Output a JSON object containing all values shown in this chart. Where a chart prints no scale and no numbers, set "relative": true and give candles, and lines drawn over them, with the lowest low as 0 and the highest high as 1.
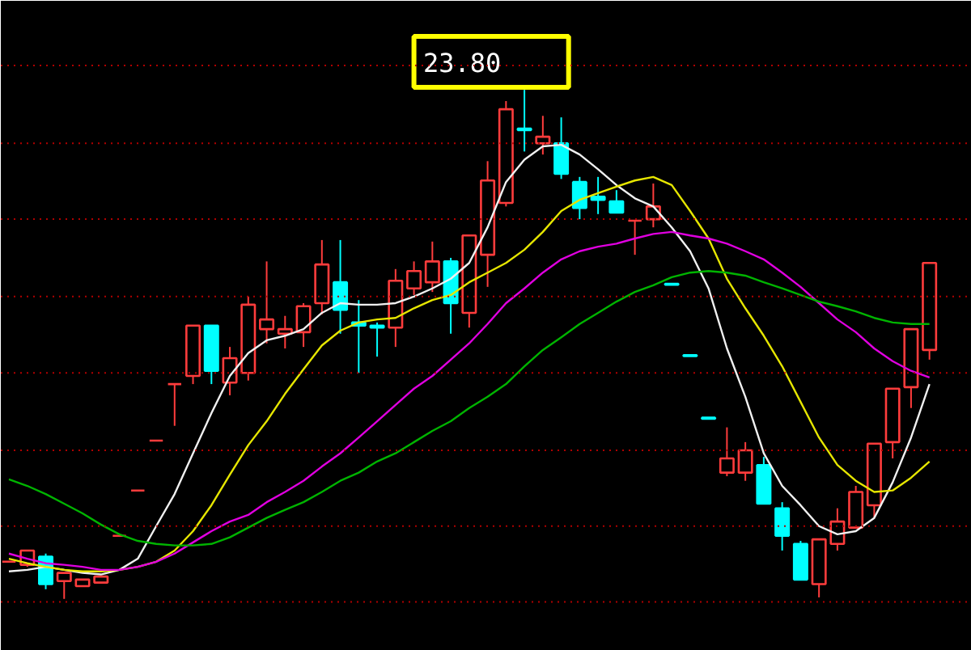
{
  "chart_data": {
    "type": "candlestick",
    "relative": true,
    "tick_labels": false,
    "ref_lines": [
      {
        "axis": "y",
        "value": 1.048,
        "color": "#b00000",
        "line_style": "dotted"
      },
      {
        "axis": "y",
        "value": 0.895,
        "color": "#b00000",
        "line_style": "dotted"
      },
      {
        "axis": "y",
        "value": 0.746,
        "color": "#b00000",
        "line_style": "dotted"
      },
      {
        "axis": "y",
        "value": 0.594,
        "color": "#b00000",
        "line_style": "dotted"
      },
      {
        "axis": "y",
        "value": 0.444,
        "color": "#b00000",
        "line_style": "dotted"
      },
      {
        "axis": "y",
        "value": 0.292,
        "color": "#b00000",
        "line_style": "dotted"
      },
      {
        "axis": "y",
        "value": 0.143,
        "color": "#b00000",
        "line_style": "dotted"
      },
      {
        "axis": "y",
        "value": -0.006,
        "color": "#b00000",
        "line_style": "dotted"
      }
    ],
    "categories": [
      null,
      null,
      null,
      null,
      null,
      null,
      null,
      null,
      null,
      null,
      null,
      null,
      null,
      null,
      null,
      null,
      null,
      null,
      null,
      null,
      null,
      null,
      null,
      null,
      null,
      null,
      null,
      null,
      null,
      null,
      null,
      null,
      null,
      null,
      null,
      null,
      null,
      null,
      null,
      null,
      null,
      null,
      null,
      null,
      null,
      null,
      null,
      null,
      null,
      null,
      null
    ],
    "ohlc": [
      [
        0.073,
        0.073,
        0.073,
        0.073
      ],
      [
        0.067,
        0.095,
        0.063,
        0.095
      ],
      [
        0.083,
        0.089,
        0.019,
        0.029
      ],
      [
        0.035,
        0.051,
        0,
        0.051
      ],
      [
        0.025,
        0.038,
        0.025,
        0.038
      ],
      [
        0.032,
        0.044,
        0.032,
        0.044
      ],
      [
        0.124,
        0.124,
        0.124,
        0.124
      ],
      [
        0.213,
        0.213,
        0.213,
        0.213
      ],
      [
        0.311,
        0.311,
        0.311,
        0.311
      ],
      [
        0.422,
        0.422,
        0.34,
        0.422
      ],
      [
        0.438,
        0.537,
        0.422,
        0.537
      ],
      [
        0.537,
        0.537,
        0.422,
        0.448
      ],
      [
        0.425,
        0.495,
        0.4,
        0.473
      ],
      [
        0.444,
        0.594,
        0.429,
        0.578
      ],
      [
        0.53,
        0.663,
        0.502,
        0.549
      ],
      [
        0.521,
        0.556,
        0.492,
        0.53
      ],
      [
        0.524,
        0.581,
        0.495,
        0.575
      ],
      [
        0.581,
        0.705,
        0.559,
        0.657
      ],
      [
        0.622,
        0.705,
        0.521,
        0.568
      ],
      [
        0.543,
        0.587,
        0.444,
        0.537
      ],
      [
        0.537,
        0.543,
        0.476,
        0.533
      ],
      [
        0.533,
        0.648,
        0.495,
        0.625
      ],
      [
        0.61,
        0.663,
        0.597,
        0.644
      ],
      [
        0.622,
        0.702,
        0.603,
        0.663
      ],
      [
        0.663,
        0.67,
        0.521,
        0.581
      ],
      [
        0.562,
        0.714,
        0.533,
        0.714
      ],
      [
        0.676,
        0.86,
        0.613,
        0.822
      ],
      [
        0.778,
        0.978,
        0.771,
        0.962
      ],
      [
        0.924,
        1,
        0.879,
        0.921
      ],
      [
        0.895,
        0.949,
        0.873,
        0.908
      ],
      [
        0.895,
        0.946,
        0.825,
        0.835
      ],
      [
        0.819,
        0.829,
        0.746,
        0.768
      ],
      [
        0.79,
        0.829,
        0.756,
        0.784
      ],
      [
        0.781,
        0.803,
        0.759,
        0.759
      ],
      [
        0.743,
        0.743,
        0.676,
        0.743
      ],
      [
        0.746,
        0.816,
        0.73,
        0.771
      ],
      [
        0.619,
        0.619,
        0.617,
        0.617
      ],
      [
        0.479,
        0.479,
        0.477,
        0.477
      ],
      [
        0.356,
        0.356,
        0.354,
        0.354
      ],
      [
        0.248,
        0.337,
        0.241,
        0.276
      ],
      [
        0.248,
        0.308,
        0.232,
        0.292
      ],
      [
        0.263,
        0.279,
        0.187,
        0.187
      ],
      [
        0.178,
        0.19,
        0.095,
        0.124
      ],
      [
        0.108,
        0.114,
        0.038,
        0.038
      ],
      [
        0.029,
        0.117,
        0.003,
        0.117
      ],
      [
        0.108,
        0.178,
        0.095,
        0.152
      ],
      [
        0.14,
        0.222,
        0.14,
        0.21
      ],
      [
        0.184,
        0.305,
        0.159,
        0.305
      ],
      [
        0.308,
        0.413,
        0.276,
        0.413
      ],
      [
        0.416,
        0.53,
        0.375,
        0.53
      ],
      [
        0.489,
        0.66,
        0.47,
        0.66
      ]
    ],
    "series": [
      {
        "type": "line",
        "color": "#f0f0f0",
        "values": [
          0.054,
          0.057,
          0.063,
          0.057,
          0.051,
          0.048,
          0.057,
          0.079,
          0.143,
          0.206,
          0.286,
          0.365,
          0.438,
          0.483,
          0.508,
          0.517,
          0.53,
          0.562,
          0.581,
          0.578,
          0.578,
          0.581,
          0.594,
          0.61,
          0.629,
          0.66,
          0.73,
          0.819,
          0.863,
          0.889,
          0.892,
          0.873,
          0.844,
          0.813,
          0.787,
          0.771,
          0.73,
          0.683,
          0.61,
          0.492,
          0.397,
          0.286,
          0.222,
          0.184,
          0.143,
          0.127,
          0.133,
          0.159,
          0.229,
          0.317,
          0.422
        ]
      },
      {
        "type": "line",
        "color": "#e6e600",
        "values": [
          0.079,
          0.07,
          0.063,
          0.057,
          0.054,
          0.054,
          0.057,
          0.063,
          0.073,
          0.095,
          0.133,
          0.184,
          0.244,
          0.302,
          0.349,
          0.403,
          0.451,
          0.498,
          0.527,
          0.543,
          0.549,
          0.552,
          0.571,
          0.587,
          0.597,
          0.622,
          0.641,
          0.66,
          0.686,
          0.721,
          0.762,
          0.784,
          0.797,
          0.81,
          0.822,
          0.829,
          0.813,
          0.762,
          0.708,
          0.629,
          0.571,
          0.517,
          0.457,
          0.387,
          0.317,
          0.263,
          0.232,
          0.21,
          0.213,
          0.238,
          0.27
        ]
      },
      {
        "type": "line",
        "color": "#e000e0",
        "values": [
          0.089,
          0.079,
          0.07,
          0.067,
          0.063,
          0.057,
          0.057,
          0.063,
          0.073,
          0.089,
          0.111,
          0.133,
          0.152,
          0.165,
          0.19,
          0.21,
          0.232,
          0.26,
          0.286,
          0.317,
          0.349,
          0.381,
          0.413,
          0.438,
          0.47,
          0.502,
          0.54,
          0.581,
          0.61,
          0.641,
          0.667,
          0.683,
          0.692,
          0.698,
          0.708,
          0.717,
          0.721,
          0.714,
          0.708,
          0.698,
          0.683,
          0.667,
          0.641,
          0.613,
          0.581,
          0.549,
          0.524,
          0.492,
          0.467,
          0.448,
          0.435
        ]
      },
      {
        "type": "line",
        "color": "#00b400",
        "values": [
          0.235,
          0.222,
          0.206,
          0.187,
          0.168,
          0.146,
          0.127,
          0.114,
          0.108,
          0.105,
          0.105,
          0.108,
          0.121,
          0.14,
          0.159,
          0.175,
          0.19,
          0.21,
          0.232,
          0.248,
          0.27,
          0.286,
          0.308,
          0.33,
          0.349,
          0.375,
          0.397,
          0.422,
          0.457,
          0.489,
          0.514,
          0.54,
          0.562,
          0.584,
          0.603,
          0.616,
          0.632,
          0.641,
          0.644,
          0.641,
          0.635,
          0.622,
          0.61,
          0.597,
          0.584,
          0.575,
          0.565,
          0.552,
          0.543,
          0.54,
          0.54
        ]
      }
    ],
    "annotations": [
      "23.80"
    ]
  }
}
